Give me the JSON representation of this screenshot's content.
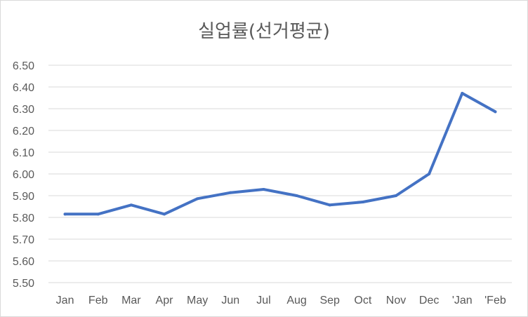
{
  "chart_data": {
    "type": "line",
    "title": "실업률(선거평균)",
    "xlabel": "",
    "ylabel": "",
    "categories": [
      "Jan",
      "Feb",
      "Mar",
      "Apr",
      "May",
      "Jun",
      "Jul",
      "Aug",
      "Sep",
      "Oct",
      "Nov",
      "Dec",
      "'Jan",
      "'Feb"
    ],
    "series": [
      {
        "values": [
          5.815,
          5.815,
          5.857,
          5.815,
          5.886,
          5.914,
          5.929,
          5.9,
          5.857,
          5.871,
          5.9,
          6.0,
          6.371,
          6.286
        ],
        "color": "#4472c4"
      }
    ],
    "ylim": [
      5.5,
      6.5
    ],
    "yticks": [
      "6.50",
      "6.40",
      "6.30",
      "6.20",
      "6.10",
      "6.00",
      "5.90",
      "5.80",
      "5.70",
      "5.60",
      "5.50"
    ],
    "grid": true,
    "legend": "none"
  }
}
